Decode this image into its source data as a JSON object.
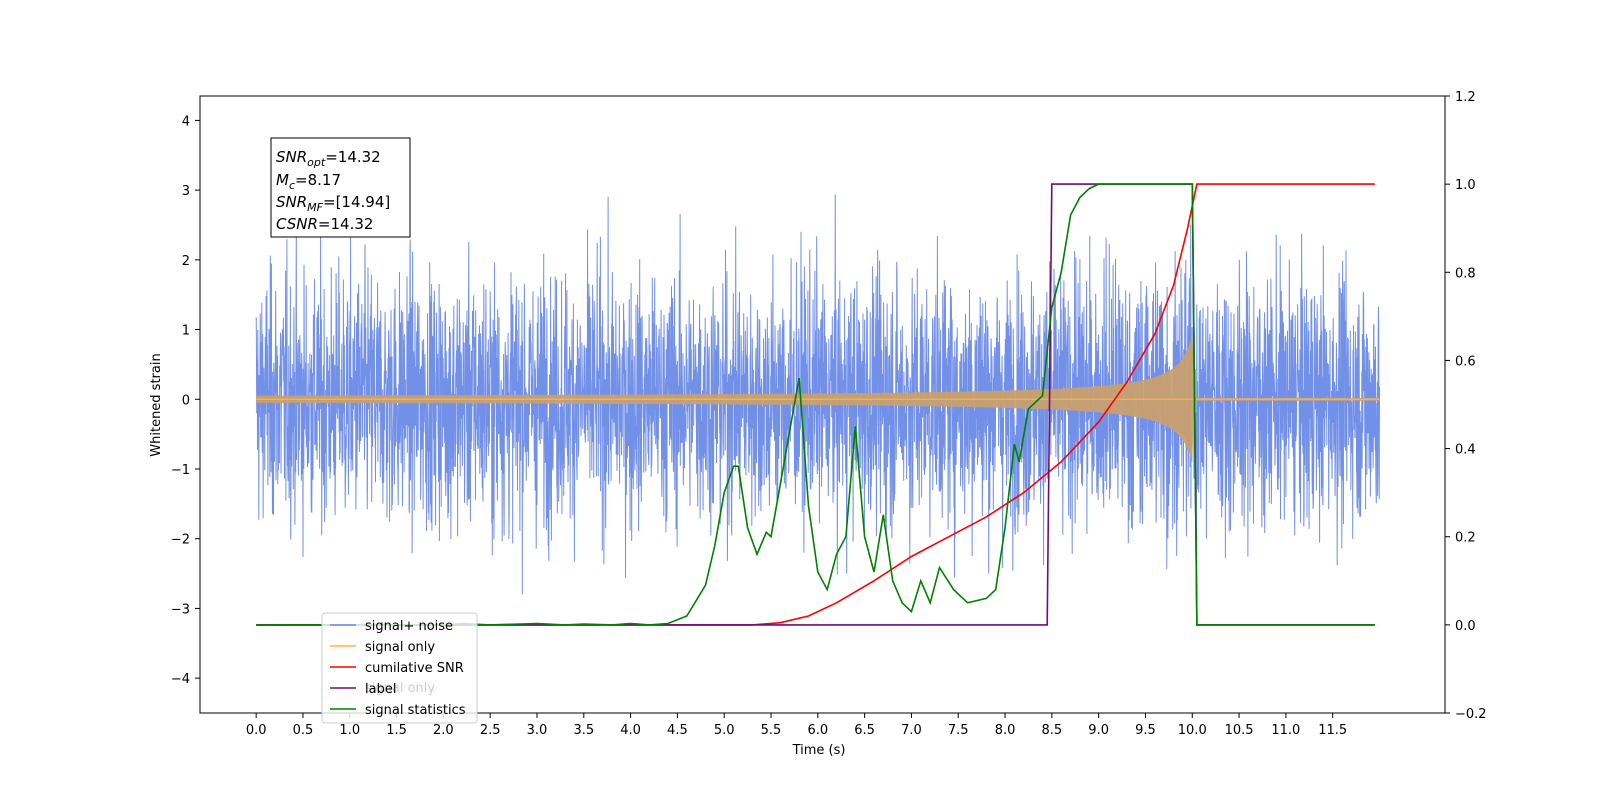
{
  "chart_data": {
    "type": "line",
    "xlabel": "Time (s)",
    "ylabel": "Whitened strain",
    "xlim": [
      -0.6,
      12.7
    ],
    "ylim": [
      -4.5,
      4.35
    ],
    "y2lim": [
      -0.2,
      1.2
    ],
    "x_ticks": [
      "0.0",
      "0.5",
      "1.0",
      "1.5",
      "2.0",
      "2.5",
      "3.0",
      "3.5",
      "4.0",
      "4.5",
      "5.0",
      "5.5",
      "6.0",
      "6.5",
      "7.0",
      "7.5",
      "8.0",
      "8.5",
      "9.0",
      "9.5",
      "10.0",
      "10.5",
      "11.0",
      "11.5"
    ],
    "y_ticks": [
      4,
      3,
      2,
      1,
      0,
      -1,
      -2,
      -3,
      -4
    ],
    "y2_ticks": [
      "1.2",
      "1.0",
      "0.8",
      "0.6",
      "0.4",
      "0.2",
      "0.0",
      "−0.2"
    ],
    "annotation": {
      "lines": [
        {
          "label": "SNR",
          "sub": "opt",
          "value": "=14.32"
        },
        {
          "label": "M",
          "sub": "c",
          "value": "=8.17"
        },
        {
          "label": "SNR",
          "sub": "MF",
          "value": "=[14.94]"
        },
        {
          "label": "CSNR",
          "sub": "",
          "value": "=14.32"
        }
      ]
    },
    "legend": {
      "placement": "lower-left",
      "entries": [
        "signal+ noise",
        "signal only",
        "cumilative SNR",
        "label",
        "signal statistics"
      ],
      "ghost_text": "signal only"
    },
    "colors": {
      "signal_noise": "#6a8ae6",
      "signal_only": "#ffb347",
      "chirp_fill": "#c8a070",
      "cumulative_snr": "#ff0000",
      "label": "#6b0f7a",
      "signal_statistics": "#008000"
    },
    "series": [
      {
        "name": "cumilative SNR",
        "axis": "right",
        "x": [
          0,
          5.3,
          5.6,
          5.9,
          6.2,
          6.6,
          7.0,
          7.4,
          7.8,
          8.2,
          8.6,
          9.0,
          9.3,
          9.6,
          9.8,
          9.95,
          10.05,
          11.95
        ],
        "y": [
          0,
          0,
          0.005,
          0.02,
          0.05,
          0.1,
          0.155,
          0.2,
          0.245,
          0.3,
          0.37,
          0.46,
          0.55,
          0.66,
          0.77,
          0.9,
          1.0,
          1.0
        ]
      },
      {
        "name": "label",
        "axis": "right",
        "x": [
          0,
          8.45,
          8.5,
          10.0,
          10.05,
          11.95
        ],
        "y": [
          0,
          0,
          1,
          1,
          0,
          0
        ]
      },
      {
        "name": "signal statistics",
        "axis": "right",
        "x": [
          0,
          2.0,
          2.2,
          2.5,
          3.0,
          3.3,
          3.5,
          3.8,
          4.0,
          4.2,
          4.4,
          4.6,
          4.8,
          4.9,
          5.0,
          5.1,
          5.15,
          5.25,
          5.35,
          5.45,
          5.5,
          5.6,
          5.7,
          5.8,
          5.9,
          6.0,
          6.1,
          6.2,
          6.3,
          6.4,
          6.5,
          6.6,
          6.7,
          6.8,
          6.9,
          7.0,
          7.1,
          7.2,
          7.3,
          7.45,
          7.6,
          7.8,
          7.9,
          8.0,
          8.1,
          8.15,
          8.25,
          8.4,
          8.5,
          8.6,
          8.7,
          8.8,
          8.9,
          9.0,
          9.5,
          10.0,
          10.05,
          10.1,
          11.95
        ],
        "y": [
          0,
          0,
          0.003,
          0,
          0.003,
          0,
          0.002,
          0,
          0.003,
          0,
          0.003,
          0.02,
          0.09,
          0.18,
          0.3,
          0.36,
          0.36,
          0.22,
          0.16,
          0.21,
          0.2,
          0.32,
          0.44,
          0.56,
          0.27,
          0.12,
          0.08,
          0.16,
          0.2,
          0.45,
          0.2,
          0.12,
          0.25,
          0.1,
          0.05,
          0.03,
          0.1,
          0.05,
          0.13,
          0.08,
          0.05,
          0.06,
          0.08,
          0.22,
          0.41,
          0.37,
          0.49,
          0.52,
          0.72,
          0.8,
          0.93,
          0.97,
          0.99,
          1.0,
          1.0,
          1.0,
          0.0,
          0.0,
          0.0
        ]
      }
    ]
  }
}
